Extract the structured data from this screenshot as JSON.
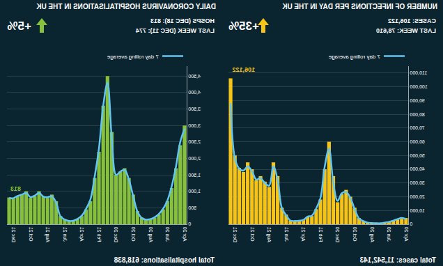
{
  "chart_data": [
    {
      "type": "bar",
      "title": "NUMBER OF INFECTIONS PER DAY IN THE UK",
      "subtitle": [
        "CASES: 106,122",
        "LAST WEEK: 78,610"
      ],
      "annotations": [
        {
          "text": "+35%",
          "marker": "up_arrow"
        },
        {
          "text": "Total cases: 11,542,143"
        },
        {
          "text": "106,122",
          "x": 41,
          "y": 106122
        }
      ],
      "categories": [
        "Apr 20",
        null,
        null,
        null,
        "Jun 20",
        null,
        null,
        null,
        "Aug 20",
        null,
        null,
        null,
        "Oct 20",
        null,
        null,
        null,
        "Dec 20",
        null,
        null,
        null,
        "Feb 21",
        null,
        null,
        null,
        "Apr 21",
        null,
        null,
        null,
        "Jun 21",
        null,
        null,
        null,
        "Aug 21",
        null,
        null,
        null,
        "Oct 21",
        null,
        null,
        null,
        "Dec 21",
        null
      ],
      "series": [
        {
          "type": "bar",
          "color": "#f6c417",
          "values": [
            4500,
            5000,
            3500,
            2500,
            1600,
            1100,
            700,
            750,
            900,
            1200,
            2500,
            4500,
            12000,
            20000,
            25000,
            22000,
            16000,
            35000,
            60000,
            40000,
            18000,
            11000,
            6000,
            5500,
            3000,
            2500,
            2300,
            2700,
            7000,
            12000,
            35000,
            45000,
            27000,
            31000,
            35000,
            32000,
            40000,
            45000,
            38000,
            41000,
            50000,
            106122
          ]
        },
        {
          "type": "line",
          "name": "7 day rolling average",
          "color": "#63c6f2",
          "values": [
            3800,
            4600,
            3700,
            2600,
            1700,
            1150,
            700,
            730,
            880,
            1150,
            2300,
            4200,
            11000,
            19000,
            23500,
            22500,
            17000,
            30000,
            55000,
            42000,
            19000,
            11500,
            6200,
            5500,
            3100,
            2550,
            2350,
            2650,
            6500,
            11500,
            32000,
            42000,
            28000,
            30000,
            33500,
            32500,
            38500,
            42000,
            39000,
            40500,
            48000,
            88000
          ]
        }
      ],
      "ylim": [
        0,
        115000
      ],
      "yticks": [
        0,
        {
          "value": 10000,
          "label": "10,000"
        },
        {
          "value": 20000,
          "label": "20,000"
        },
        {
          "value": 30000,
          "label": "30,000"
        },
        {
          "value": 40000,
          "label": "40,000"
        },
        {
          "value": 50000,
          "label": "50,000"
        },
        {
          "value": 60000,
          "label": "60,000"
        },
        {
          "value": 70000,
          "label": "70,000"
        },
        {
          "value": 80000,
          "label": "80,000"
        },
        {
          "value": 90000,
          "label": "90,000"
        },
        {
          "value": 100000,
          "label": "100,000"
        },
        {
          "value": 110000,
          "label": "110,000"
        }
      ],
      "grid": true,
      "legend": "top left"
    },
    {
      "type": "bar",
      "title": "DAILY CORONAVIRUS HOSPITALISATIONS IN THE UK",
      "subtitle": [
        "HOSPS (DEC 18): 813",
        "LAST WEEK (DEC 11): 774"
      ],
      "annotations": [
        {
          "text": "+5%",
          "marker": "up_arrow"
        },
        {
          "text": "Total hospitalisations: 618,838"
        },
        {
          "text": "813",
          "x": 41,
          "y": 813
        }
      ],
      "categories": [
        "Apr 20",
        null,
        null,
        null,
        "Jun 20",
        null,
        null,
        null,
        "Aug 20",
        null,
        null,
        null,
        "Oct 20",
        null,
        null,
        null,
        "Dec 20",
        null,
        null,
        null,
        "Feb 21",
        null,
        null,
        null,
        "Apr 21",
        null,
        null,
        null,
        "Jun 21",
        null,
        null,
        null,
        "Aug 21",
        null,
        null,
        null,
        "Oct 21",
        null,
        null,
        null,
        "Dec 21",
        null
      ],
      "series": [
        {
          "type": "bar",
          "color": "#86c03c",
          "values": [
            3000,
            2400,
            1700,
            1100,
            700,
            450,
            300,
            200,
            150,
            140,
            200,
            400,
            900,
            1400,
            1700,
            1600,
            1500,
            2800,
            4500,
            3600,
            2200,
            1400,
            700,
            450,
            250,
            150,
            100,
            100,
            150,
            250,
            700,
            900,
            800,
            850,
            1000,
            850,
            800,
            1000,
            900,
            850,
            780,
            813
          ]
        },
        {
          "type": "line",
          "name": "7 day rolling average",
          "color": "#63c6f2",
          "values": [
            2900,
            2500,
            1750,
            1150,
            720,
            470,
            310,
            210,
            155,
            140,
            190,
            380,
            850,
            1350,
            1650,
            1600,
            1500,
            2600,
            4300,
            3600,
            2300,
            1450,
            750,
            470,
            260,
            160,
            105,
            100,
            140,
            240,
            650,
            850,
            820,
            840,
            950,
            870,
            820,
            950,
            900,
            860,
            790,
            800
          ]
        }
      ],
      "ylim": [
        0,
        4800
      ],
      "yticks": [
        0,
        500,
        {
          "value": 1000,
          "label": "1,000"
        },
        {
          "value": 1500,
          "label": "1,500"
        },
        {
          "value": 2000,
          "label": "2,000"
        },
        {
          "value": 2500,
          "label": "2,500"
        },
        {
          "value": 3000,
          "label": "3,000"
        },
        {
          "value": 3500,
          "label": "3,500"
        },
        {
          "value": 4000,
          "label": "4,000"
        },
        {
          "value": 4500,
          "label": "4,500"
        }
      ],
      "grid": true,
      "legend": "top left"
    }
  ]
}
